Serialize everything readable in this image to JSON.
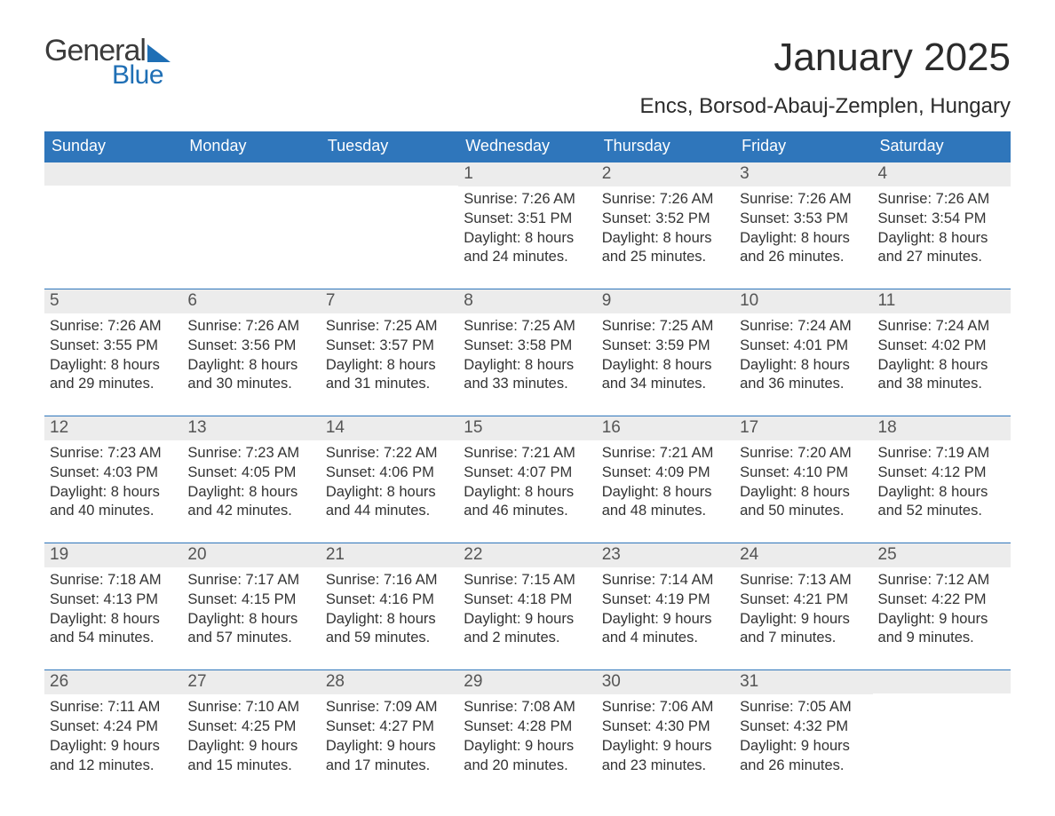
{
  "logo": {
    "word1": "General",
    "word2": "Blue"
  },
  "header": {
    "title": "January 2025",
    "subtitle": "Encs, Borsod-Abauj-Zemplen, Hungary"
  },
  "columns": [
    "Sunday",
    "Monday",
    "Tuesday",
    "Wednesday",
    "Thursday",
    "Friday",
    "Saturday"
  ],
  "colors": {
    "accent": "#2f76bb",
    "number_strip": "#ececec",
    "background": "#ffffff",
    "text": "#333333"
  },
  "weeks": [
    [
      {
        "blank": true
      },
      {
        "blank": true
      },
      {
        "blank": true
      },
      {
        "num": "1",
        "sunrise": "Sunrise: 7:26 AM",
        "sunset": "Sunset: 3:51 PM",
        "day1": "Daylight: 8 hours",
        "day2": "and 24 minutes."
      },
      {
        "num": "2",
        "sunrise": "Sunrise: 7:26 AM",
        "sunset": "Sunset: 3:52 PM",
        "day1": "Daylight: 8 hours",
        "day2": "and 25 minutes."
      },
      {
        "num": "3",
        "sunrise": "Sunrise: 7:26 AM",
        "sunset": "Sunset: 3:53 PM",
        "day1": "Daylight: 8 hours",
        "day2": "and 26 minutes."
      },
      {
        "num": "4",
        "sunrise": "Sunrise: 7:26 AM",
        "sunset": "Sunset: 3:54 PM",
        "day1": "Daylight: 8 hours",
        "day2": "and 27 minutes."
      }
    ],
    [
      {
        "num": "5",
        "sunrise": "Sunrise: 7:26 AM",
        "sunset": "Sunset: 3:55 PM",
        "day1": "Daylight: 8 hours",
        "day2": "and 29 minutes."
      },
      {
        "num": "6",
        "sunrise": "Sunrise: 7:26 AM",
        "sunset": "Sunset: 3:56 PM",
        "day1": "Daylight: 8 hours",
        "day2": "and 30 minutes."
      },
      {
        "num": "7",
        "sunrise": "Sunrise: 7:25 AM",
        "sunset": "Sunset: 3:57 PM",
        "day1": "Daylight: 8 hours",
        "day2": "and 31 minutes."
      },
      {
        "num": "8",
        "sunrise": "Sunrise: 7:25 AM",
        "sunset": "Sunset: 3:58 PM",
        "day1": "Daylight: 8 hours",
        "day2": "and 33 minutes."
      },
      {
        "num": "9",
        "sunrise": "Sunrise: 7:25 AM",
        "sunset": "Sunset: 3:59 PM",
        "day1": "Daylight: 8 hours",
        "day2": "and 34 minutes."
      },
      {
        "num": "10",
        "sunrise": "Sunrise: 7:24 AM",
        "sunset": "Sunset: 4:01 PM",
        "day1": "Daylight: 8 hours",
        "day2": "and 36 minutes."
      },
      {
        "num": "11",
        "sunrise": "Sunrise: 7:24 AM",
        "sunset": "Sunset: 4:02 PM",
        "day1": "Daylight: 8 hours",
        "day2": "and 38 minutes."
      }
    ],
    [
      {
        "num": "12",
        "sunrise": "Sunrise: 7:23 AM",
        "sunset": "Sunset: 4:03 PM",
        "day1": "Daylight: 8 hours",
        "day2": "and 40 minutes."
      },
      {
        "num": "13",
        "sunrise": "Sunrise: 7:23 AM",
        "sunset": "Sunset: 4:05 PM",
        "day1": "Daylight: 8 hours",
        "day2": "and 42 minutes."
      },
      {
        "num": "14",
        "sunrise": "Sunrise: 7:22 AM",
        "sunset": "Sunset: 4:06 PM",
        "day1": "Daylight: 8 hours",
        "day2": "and 44 minutes."
      },
      {
        "num": "15",
        "sunrise": "Sunrise: 7:21 AM",
        "sunset": "Sunset: 4:07 PM",
        "day1": "Daylight: 8 hours",
        "day2": "and 46 minutes."
      },
      {
        "num": "16",
        "sunrise": "Sunrise: 7:21 AM",
        "sunset": "Sunset: 4:09 PM",
        "day1": "Daylight: 8 hours",
        "day2": "and 48 minutes."
      },
      {
        "num": "17",
        "sunrise": "Sunrise: 7:20 AM",
        "sunset": "Sunset: 4:10 PM",
        "day1": "Daylight: 8 hours",
        "day2": "and 50 minutes."
      },
      {
        "num": "18",
        "sunrise": "Sunrise: 7:19 AM",
        "sunset": "Sunset: 4:12 PM",
        "day1": "Daylight: 8 hours",
        "day2": "and 52 minutes."
      }
    ],
    [
      {
        "num": "19",
        "sunrise": "Sunrise: 7:18 AM",
        "sunset": "Sunset: 4:13 PM",
        "day1": "Daylight: 8 hours",
        "day2": "and 54 minutes."
      },
      {
        "num": "20",
        "sunrise": "Sunrise: 7:17 AM",
        "sunset": "Sunset: 4:15 PM",
        "day1": "Daylight: 8 hours",
        "day2": "and 57 minutes."
      },
      {
        "num": "21",
        "sunrise": "Sunrise: 7:16 AM",
        "sunset": "Sunset: 4:16 PM",
        "day1": "Daylight: 8 hours",
        "day2": "and 59 minutes."
      },
      {
        "num": "22",
        "sunrise": "Sunrise: 7:15 AM",
        "sunset": "Sunset: 4:18 PM",
        "day1": "Daylight: 9 hours",
        "day2": "and 2 minutes."
      },
      {
        "num": "23",
        "sunrise": "Sunrise: 7:14 AM",
        "sunset": "Sunset: 4:19 PM",
        "day1": "Daylight: 9 hours",
        "day2": "and 4 minutes."
      },
      {
        "num": "24",
        "sunrise": "Sunrise: 7:13 AM",
        "sunset": "Sunset: 4:21 PM",
        "day1": "Daylight: 9 hours",
        "day2": "and 7 minutes."
      },
      {
        "num": "25",
        "sunrise": "Sunrise: 7:12 AM",
        "sunset": "Sunset: 4:22 PM",
        "day1": "Daylight: 9 hours",
        "day2": "and 9 minutes."
      }
    ],
    [
      {
        "num": "26",
        "sunrise": "Sunrise: 7:11 AM",
        "sunset": "Sunset: 4:24 PM",
        "day1": "Daylight: 9 hours",
        "day2": "and 12 minutes."
      },
      {
        "num": "27",
        "sunrise": "Sunrise: 7:10 AM",
        "sunset": "Sunset: 4:25 PM",
        "day1": "Daylight: 9 hours",
        "day2": "and 15 minutes."
      },
      {
        "num": "28",
        "sunrise": "Sunrise: 7:09 AM",
        "sunset": "Sunset: 4:27 PM",
        "day1": "Daylight: 9 hours",
        "day2": "and 17 minutes."
      },
      {
        "num": "29",
        "sunrise": "Sunrise: 7:08 AM",
        "sunset": "Sunset: 4:28 PM",
        "day1": "Daylight: 9 hours",
        "day2": "and 20 minutes."
      },
      {
        "num": "30",
        "sunrise": "Sunrise: 7:06 AM",
        "sunset": "Sunset: 4:30 PM",
        "day1": "Daylight: 9 hours",
        "day2": "and 23 minutes."
      },
      {
        "num": "31",
        "sunrise": "Sunrise: 7:05 AM",
        "sunset": "Sunset: 4:32 PM",
        "day1": "Daylight: 9 hours",
        "day2": "and 26 minutes."
      },
      {
        "blank": true
      }
    ]
  ]
}
